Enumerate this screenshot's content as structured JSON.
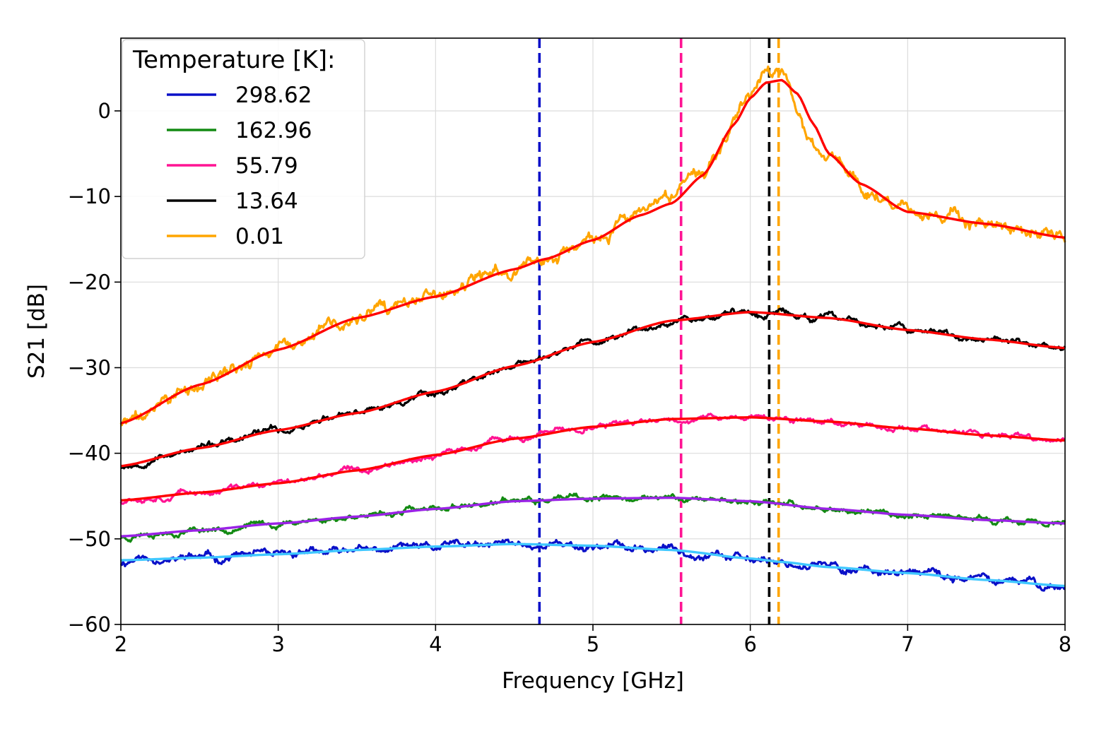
{
  "chart_data": {
    "type": "line",
    "xlabel": "Frequency [GHz]",
    "ylabel": "S21 [dB]",
    "xlim": [
      2,
      8
    ],
    "ylim": [
      -60,
      8.5
    ],
    "xticks": [
      2,
      3,
      4,
      5,
      6,
      7,
      8
    ],
    "xtick_labels": [
      "2",
      "3",
      "4",
      "5",
      "6",
      "7",
      "8"
    ],
    "yticks": [
      -60,
      -50,
      -40,
      -30,
      -20,
      -10,
      0
    ],
    "ytick_labels": [
      "−60",
      "−50",
      "−40",
      "−30",
      "−20",
      "−10",
      "0"
    ],
    "grid": true,
    "legend": {
      "title": "Temperature [K]:",
      "placement": "top-left",
      "entries": [
        {
          "label": "298.62",
          "color": "#0a10c8"
        },
        {
          "label": "162.96",
          "color": "#138a13"
        },
        {
          "label": "55.79",
          "color": "#ff1493"
        },
        {
          "label": "13.64",
          "color": "#000000"
        },
        {
          "label": "0.01",
          "color": "#ffa500"
        }
      ]
    },
    "series": [
      {
        "name": "298.62",
        "color": "#0a10c8",
        "noise": 0.55,
        "seed": 11,
        "x": [
          2.0,
          2.5,
          3.0,
          3.5,
          4.0,
          4.5,
          5.0,
          5.5,
          6.0,
          6.2,
          6.5,
          7.0,
          7.5,
          8.0
        ],
        "y": [
          -52.5,
          -52.2,
          -51.8,
          -51.3,
          -50.9,
          -50.6,
          -50.8,
          -51.3,
          -52.3,
          -52.7,
          -53.3,
          -54.0,
          -54.8,
          -55.5
        ]
      },
      {
        "name": "162.96",
        "color": "#138a13",
        "noise": 0.4,
        "seed": 23,
        "x": [
          2.0,
          2.5,
          3.0,
          3.5,
          4.0,
          4.5,
          5.0,
          5.5,
          6.0,
          6.5,
          7.0,
          7.5,
          8.0
        ],
        "y": [
          -49.7,
          -49.0,
          -48.2,
          -47.4,
          -46.5,
          -45.6,
          -45.3,
          -45.2,
          -45.6,
          -46.5,
          -47.2,
          -47.8,
          -48.2
        ]
      },
      {
        "name": "55.79",
        "color": "#ff1493",
        "noise": 0.4,
        "seed": 37,
        "x": [
          2.0,
          2.5,
          3.0,
          3.5,
          4.0,
          4.5,
          5.0,
          5.5,
          6.0,
          6.5,
          7.0,
          7.5,
          8.0
        ],
        "y": [
          -45.5,
          -44.6,
          -43.5,
          -42.0,
          -40.2,
          -38.3,
          -36.9,
          -36.0,
          -35.8,
          -36.3,
          -37.1,
          -37.9,
          -38.5
        ]
      },
      {
        "name": "13.64",
        "color": "#000000",
        "noise": 0.45,
        "seed": 53,
        "x": [
          2.0,
          2.5,
          3.0,
          3.5,
          4.0,
          4.5,
          5.0,
          5.5,
          6.0,
          6.5,
          7.0,
          7.5,
          8.0
        ],
        "y": [
          -41.5,
          -39.4,
          -37.3,
          -35.3,
          -32.8,
          -29.8,
          -27.0,
          -24.5,
          -23.5,
          -24.2,
          -25.6,
          -26.7,
          -27.7
        ]
      },
      {
        "name": "0.01",
        "color": "#ffa500",
        "noise": 0.9,
        "seed": 71,
        "x": [
          2.0,
          2.5,
          3.0,
          3.5,
          4.0,
          4.5,
          4.7,
          5.0,
          5.3,
          5.5,
          5.7,
          5.9,
          6.0,
          6.1,
          6.2,
          6.3,
          6.4,
          6.5,
          6.7,
          7.0,
          7.5,
          8.0
        ],
        "y": [
          -36.5,
          -32.0,
          -27.9,
          -24.2,
          -21.7,
          -18.5,
          -17.3,
          -15.1,
          -12.2,
          -10.0,
          -7.0,
          -1.0,
          2.5,
          4.5,
          5.0,
          0.0,
          -4.0,
          -5.5,
          -8.5,
          -11.5,
          -13.5,
          -15.0
        ]
      }
    ],
    "fits": [
      {
        "color": "#40c8ff",
        "x": [
          2.0,
          2.5,
          3.0,
          3.5,
          4.0,
          4.5,
          5.0,
          5.5,
          6.0,
          6.2,
          6.5,
          7.0,
          7.5,
          8.0
        ],
        "y": [
          -52.5,
          -52.2,
          -51.8,
          -51.3,
          -50.9,
          -50.6,
          -50.8,
          -51.3,
          -52.3,
          -52.7,
          -53.3,
          -54.0,
          -54.8,
          -55.5
        ]
      },
      {
        "color": "#9a22e6",
        "x": [
          2.0,
          2.5,
          3.0,
          3.5,
          4.0,
          4.5,
          5.0,
          5.5,
          6.0,
          6.5,
          7.0,
          7.5,
          8.0
        ],
        "y": [
          -49.7,
          -49.0,
          -48.2,
          -47.4,
          -46.5,
          -45.6,
          -45.3,
          -45.2,
          -45.6,
          -46.5,
          -47.2,
          -47.8,
          -48.2
        ]
      },
      {
        "color": "#ff0000",
        "x": [
          2.0,
          2.5,
          3.0,
          3.5,
          4.0,
          4.5,
          5.0,
          5.5,
          6.0,
          6.5,
          7.0,
          7.5,
          8.0
        ],
        "y": [
          -45.5,
          -44.6,
          -43.5,
          -42.0,
          -40.2,
          -38.3,
          -36.9,
          -36.0,
          -35.8,
          -36.3,
          -37.1,
          -37.9,
          -38.5
        ]
      },
      {
        "color": "#ff0000",
        "x": [
          2.0,
          2.5,
          3.0,
          3.5,
          4.0,
          4.5,
          5.0,
          5.5,
          6.0,
          6.5,
          7.0,
          7.5,
          8.0
        ],
        "y": [
          -41.5,
          -39.4,
          -37.3,
          -35.3,
          -32.8,
          -29.8,
          -27.0,
          -24.5,
          -23.5,
          -24.2,
          -25.6,
          -26.7,
          -27.7
        ]
      },
      {
        "color": "#ff0000",
        "x": [
          2.0,
          2.5,
          3.0,
          3.5,
          4.0,
          4.5,
          4.7,
          5.0,
          5.3,
          5.5,
          5.7,
          5.9,
          6.0,
          6.1,
          6.2,
          6.3,
          6.4,
          6.5,
          6.7,
          7.0,
          7.5,
          8.0
        ],
        "y": [
          -36.5,
          -32.0,
          -27.9,
          -24.2,
          -21.7,
          -18.5,
          -17.3,
          -15.1,
          -12.2,
          -10.8,
          -7.5,
          -1.5,
          1.5,
          3.3,
          3.6,
          2.0,
          -1.5,
          -5.0,
          -8.5,
          -11.8,
          -13.2,
          -14.8
        ]
      }
    ],
    "vlines": [
      {
        "x": 4.66,
        "color": "#0a10c8"
      },
      {
        "x": 5.56,
        "color": "#ff1493"
      },
      {
        "x": 6.12,
        "color": "#000000"
      },
      {
        "x": 6.18,
        "color": "#ffa500"
      }
    ]
  }
}
